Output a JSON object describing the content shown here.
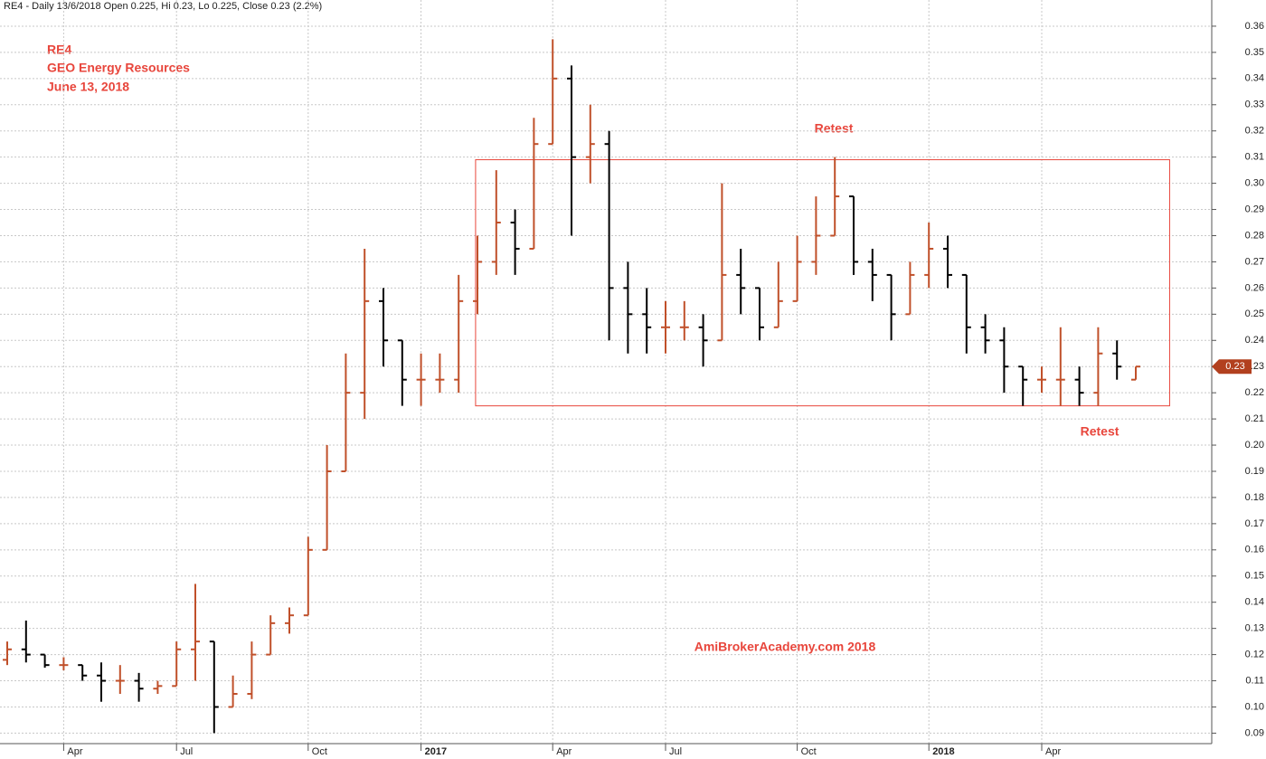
{
  "chart_data": {
    "type": "ohlc",
    "header": "RE4 - Daily 13/6/2018 Open 0.225, Hi 0.23, Lo 0.225, Close 0.23 (2.2%)",
    "annotations": {
      "symbol": "RE4",
      "company": "GEO Energy Resources",
      "date": "June 13, 2018",
      "retest_top": "Retest",
      "retest_bottom": "Retest",
      "watermark": "AmiBrokerAcademy.com  2018"
    },
    "categories": [
      null,
      null,
      null,
      "Apr",
      null,
      null,
      null,
      null,
      null,
      "Jul",
      null,
      null,
      null,
      null,
      null,
      null,
      "Oct",
      null,
      null,
      null,
      null,
      null,
      "2017",
      null,
      null,
      null,
      null,
      null,
      null,
      "Apr",
      null,
      null,
      null,
      null,
      null,
      "Jul",
      null,
      null,
      null,
      null,
      null,
      null,
      "Oct",
      null,
      null,
      null,
      null,
      null,
      null,
      "2018",
      null,
      null,
      null,
      null,
      null,
      "Apr",
      null,
      null,
      null,
      null,
      null
    ],
    "open": [
      0.118,
      0.122,
      0.12,
      0.116,
      0.116,
      0.112,
      0.11,
      0.11,
      0.107,
      0.108,
      0.122,
      0.125,
      0.1,
      0.105,
      0.12,
      0.132,
      0.135,
      0.16,
      0.19,
      0.22,
      0.255,
      0.24,
      0.225,
      0.225,
      0.225,
      0.255,
      0.27,
      0.285,
      0.275,
      0.315,
      0.34,
      0.31,
      0.315,
      0.26,
      0.25,
      0.245,
      0.245,
      0.245,
      0.24,
      0.265,
      0.26,
      0.245,
      0.255,
      0.27,
      0.28,
      0.295,
      0.27,
      0.265,
      0.25,
      0.265,
      0.275,
      0.265,
      0.245,
      0.24,
      0.23,
      0.225,
      0.225,
      0.225,
      0.22,
      0.235,
      0.225
    ],
    "high": [
      0.125,
      0.133,
      0.12,
      0.119,
      0.116,
      0.117,
      0.116,
      0.113,
      0.11,
      0.125,
      0.147,
      0.125,
      0.112,
      0.125,
      0.135,
      0.138,
      0.165,
      0.2,
      0.235,
      0.275,
      0.26,
      0.24,
      0.235,
      0.235,
      0.265,
      0.28,
      0.305,
      0.29,
      0.325,
      0.355,
      0.345,
      0.33,
      0.32,
      0.27,
      0.26,
      0.255,
      0.255,
      0.25,
      0.3,
      0.275,
      0.26,
      0.27,
      0.28,
      0.295,
      0.31,
      0.295,
      0.275,
      0.265,
      0.27,
      0.285,
      0.28,
      0.265,
      0.25,
      0.245,
      0.23,
      0.23,
      0.245,
      0.23,
      0.245,
      0.24,
      0.23
    ],
    "low": [
      0.116,
      0.117,
      0.115,
      0.114,
      0.11,
      0.102,
      0.105,
      0.102,
      0.105,
      0.108,
      0.11,
      0.09,
      0.1,
      0.103,
      0.12,
      0.128,
      0.135,
      0.16,
      0.19,
      0.21,
      0.23,
      0.215,
      0.215,
      0.22,
      0.22,
      0.25,
      0.265,
      0.265,
      0.275,
      0.315,
      0.28,
      0.3,
      0.24,
      0.235,
      0.235,
      0.235,
      0.24,
      0.23,
      0.24,
      0.25,
      0.24,
      0.245,
      0.255,
      0.265,
      0.28,
      0.265,
      0.255,
      0.24,
      0.25,
      0.26,
      0.26,
      0.235,
      0.235,
      0.22,
      0.215,
      0.22,
      0.215,
      0.215,
      0.215,
      0.225,
      0.225
    ],
    "close": [
      0.122,
      0.12,
      0.116,
      0.116,
      0.112,
      0.11,
      0.11,
      0.107,
      0.108,
      0.122,
      0.125,
      0.1,
      0.105,
      0.12,
      0.132,
      0.135,
      0.16,
      0.19,
      0.22,
      0.255,
      0.24,
      0.225,
      0.225,
      0.225,
      0.255,
      0.27,
      0.285,
      0.275,
      0.315,
      0.34,
      0.31,
      0.315,
      0.26,
      0.25,
      0.245,
      0.245,
      0.245,
      0.24,
      0.265,
      0.26,
      0.245,
      0.255,
      0.27,
      0.28,
      0.295,
      0.27,
      0.265,
      0.25,
      0.265,
      0.275,
      0.265,
      0.245,
      0.24,
      0.23,
      0.225,
      0.225,
      0.225,
      0.22,
      0.235,
      0.23,
      0.23
    ],
    "up_color": "#c0502a",
    "down_color": "#000000",
    "last_price": 0.23,
    "box": {
      "low": 0.215,
      "high": 0.309,
      "color": "#e8463c"
    },
    "ylim": [
      0.086,
      0.37
    ],
    "yticks": [
      {
        "value": 0.09,
        "label": "0.09"
      },
      {
        "value": 0.1,
        "label": "0.10"
      },
      0.11,
      0.12,
      0.13,
      0.14,
      0.15,
      0.16,
      0.17,
      0.18,
      0.19,
      {
        "value": 0.2,
        "label": "0.20"
      },
      0.21,
      0.22,
      0.23,
      0.24,
      0.25,
      0.26,
      0.27,
      0.28,
      0.29,
      {
        "value": 0.3,
        "label": "0.30"
      },
      0.31,
      0.32,
      0.33,
      0.34,
      0.35,
      0.36
    ],
    "grid": true
  }
}
